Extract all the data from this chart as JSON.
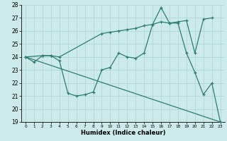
{
  "xlabel": "Humidex (Indice chaleur)",
  "bg_color": "#cceaea",
  "line_color": "#2d7d6f",
  "grid_color": "#aad4d4",
  "xlim": [
    -0.5,
    23.5
  ],
  "ylim": [
    19,
    28
  ],
  "yticks": [
    19,
    20,
    21,
    22,
    23,
    24,
    25,
    26,
    27,
    28
  ],
  "xticks": [
    0,
    1,
    2,
    3,
    4,
    5,
    6,
    7,
    8,
    9,
    10,
    11,
    12,
    13,
    14,
    15,
    16,
    17,
    18,
    19,
    20,
    21,
    22,
    23
  ],
  "line1_x": [
    0,
    23
  ],
  "line1_y": [
    24.0,
    19.0
  ],
  "line2_x": [
    0,
    1,
    2,
    3,
    4,
    5,
    6,
    7,
    8,
    9,
    10,
    11,
    12,
    13,
    14,
    15,
    16,
    17,
    18,
    19,
    20,
    21,
    22,
    23
  ],
  "line2_y": [
    24.0,
    23.6,
    24.1,
    24.1,
    23.7,
    21.2,
    21.0,
    21.1,
    21.3,
    23.0,
    23.2,
    24.3,
    24.0,
    23.9,
    24.3,
    26.5,
    27.8,
    26.6,
    26.6,
    24.3,
    22.8,
    21.1,
    22.0,
    19.0
  ],
  "line3_x": [
    0,
    2,
    3,
    4,
    9,
    10,
    11,
    12,
    13,
    14,
    15,
    16,
    17,
    18,
    19,
    20,
    21,
    22
  ],
  "line3_y": [
    24.0,
    24.1,
    24.1,
    24.0,
    25.8,
    25.9,
    26.0,
    26.1,
    26.2,
    26.4,
    26.5,
    26.7,
    26.6,
    26.7,
    26.8,
    24.3,
    26.9,
    27.0
  ]
}
